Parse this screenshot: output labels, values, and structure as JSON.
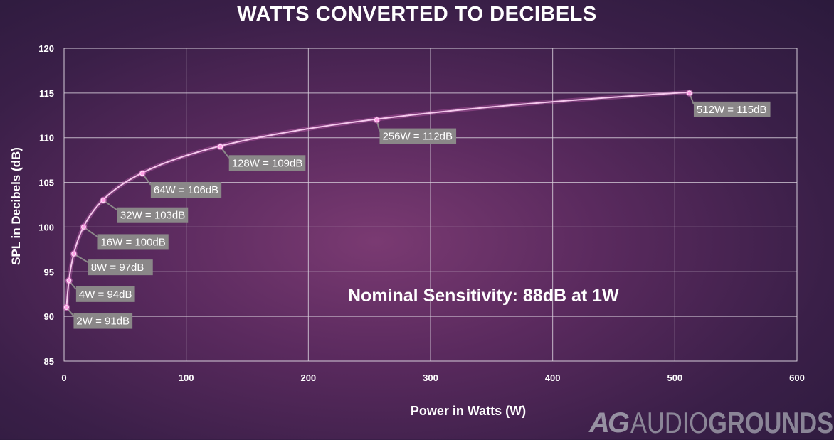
{
  "chart_data": {
    "type": "line",
    "title": "WATTS CONVERTED TO DECIBELS",
    "xlabel": "Power in Watts (W)",
    "ylabel": "SPL in Decibels (dB)",
    "xlim": [
      0,
      600
    ],
    "ylim": [
      85,
      120
    ],
    "xticks": [
      0,
      100,
      200,
      300,
      400,
      500,
      600
    ],
    "yticks": [
      85,
      90,
      95,
      100,
      105,
      110,
      115,
      120
    ],
    "grid": true,
    "series": [
      {
        "name": "SPL",
        "x": [
          2,
          4,
          8,
          16,
          32,
          64,
          128,
          256,
          512
        ],
        "y": [
          91,
          94,
          97,
          100,
          103,
          106,
          109,
          112,
          115
        ],
        "labels": [
          "2W = 91dB",
          "4W = 94dB",
          "8W =  97dB",
          "16W = 100dB",
          "32W = 103dB",
          "64W = 106dB",
          "128W = 109dB",
          "256W = 112dB",
          "512W = 115dB"
        ]
      }
    ],
    "annotation": "Nominal Sensitivity: 88dB at 1W",
    "colors": {
      "line": "#f4c8ec",
      "point": "#ff9ee6",
      "label_bg": "#8a8788",
      "grid": "#d8d0dc"
    }
  },
  "watermark": {
    "logo": "AG",
    "brand_light": "AUDIO",
    "brand_bold": "GROUNDS"
  }
}
